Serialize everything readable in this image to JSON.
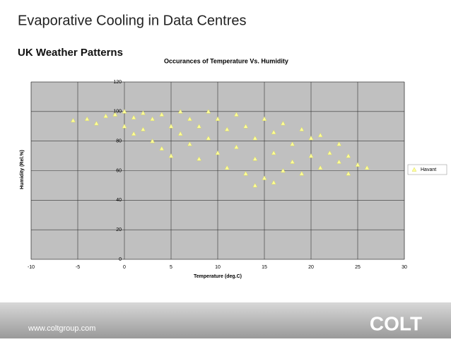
{
  "page": {
    "title": "Evaporative Cooling in Data Centres",
    "subtitle": "UK Weather Patterns"
  },
  "footer": {
    "url": "www.coltgroup.com",
    "logo": "COLT"
  },
  "chart_data": {
    "type": "scatter",
    "title": "Occurances of Temperature Vs. Humidity",
    "x_label": "Temperature (deg.C)",
    "y_label": "Humidity (Rel.%)",
    "xlim": [
      -10,
      30
    ],
    "xticks": [
      -10,
      -5,
      0,
      5,
      10,
      15,
      20,
      25,
      30
    ],
    "ylim": [
      0,
      120
    ],
    "yticks": [
      0,
      20,
      40,
      60,
      80,
      100,
      120
    ],
    "grid": true,
    "legend": "right",
    "series": [
      {
        "name": "Havant",
        "color": "#ffff99",
        "x": [
          -5.5,
          -4,
          -3,
          -2,
          -1,
          0,
          0,
          1,
          1,
          2,
          2,
          3,
          3,
          4,
          4,
          5,
          5,
          6,
          6,
          7,
          7,
          8,
          8,
          9,
          9,
          10,
          10,
          11,
          11,
          12,
          12,
          13,
          13,
          14,
          14,
          15,
          15,
          16,
          16,
          17,
          17,
          18,
          18,
          19,
          19,
          20,
          20,
          21,
          21,
          22,
          23,
          23,
          24,
          25,
          26,
          24,
          16,
          14
        ],
        "values": [
          94,
          95,
          92,
          97,
          98,
          100,
          90,
          96,
          85,
          99,
          88,
          80,
          95,
          98,
          75,
          90,
          70,
          100,
          85,
          78,
          95,
          68,
          90,
          100,
          82,
          72,
          95,
          62,
          88,
          98,
          76,
          58,
          90,
          68,
          82,
          55,
          95,
          72,
          86,
          60,
          92,
          78,
          66,
          88,
          58,
          82,
          70,
          62,
          84,
          72,
          78,
          66,
          70,
          64,
          62,
          58,
          52,
          50
        ]
      }
    ]
  }
}
